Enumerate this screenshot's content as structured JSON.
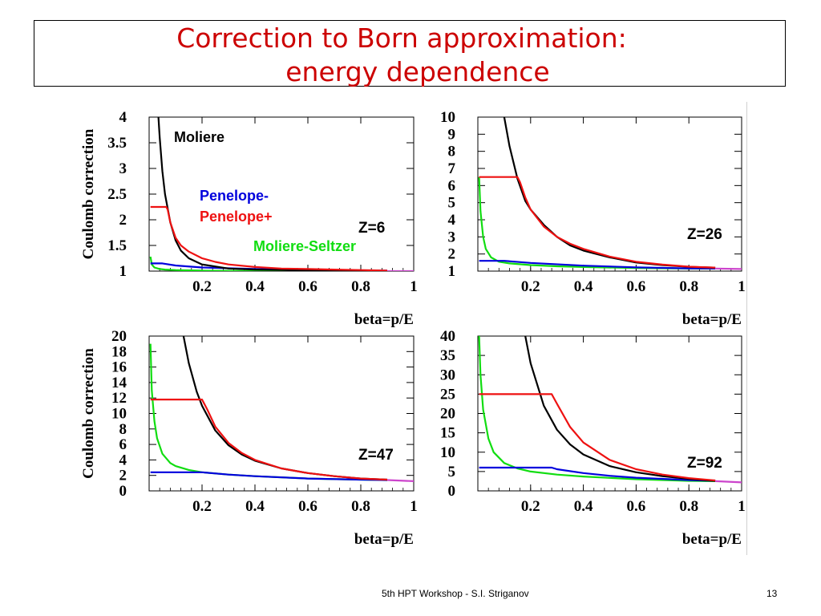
{
  "slide": {
    "title_line1": "Correction to Born approximation:",
    "title_line2": "energy dependence",
    "footer": "5th HPT Workshop  -  S.I. Striganov",
    "page_number": "13"
  },
  "colors": {
    "title": "#cc0000",
    "Moliere": "#000000",
    "Penelope-": "#0000dd",
    "Penelope+": "#ee1111",
    "Moliere-Seltzer": "#11dd11",
    "tail": "#cc44cc"
  },
  "chart_data": [
    {
      "type": "line",
      "z_label": "Z=6",
      "ylabel": "Coulomb correction",
      "xlabel": "beta=p/E",
      "xlim": [
        0,
        1
      ],
      "ylim": [
        1,
        4
      ],
      "xticks": [
        "0.2",
        "0.4",
        "0.6",
        "0.8",
        "1"
      ],
      "xtick_values": [
        0.2,
        0.4,
        0.6,
        0.8,
        1
      ],
      "yticks": [
        "1",
        "1.5",
        "2",
        "2.5",
        "3",
        "3.5",
        "4"
      ],
      "ytick_values": [
        1,
        1.5,
        2,
        2.5,
        3,
        3.5,
        4
      ],
      "legend": [
        "Moliere",
        "Penelope-",
        "Penelope+",
        "Moliere-Seltzer"
      ],
      "series": [
        {
          "name": "Moliere",
          "x": [
            0.035,
            0.04,
            0.05,
            0.06,
            0.08,
            0.1,
            0.12,
            0.15,
            0.2,
            0.3,
            0.4,
            0.5,
            0.6,
            0.7,
            0.8,
            0.9
          ],
          "y": [
            4.0,
            3.6,
            2.95,
            2.5,
            1.95,
            1.6,
            1.4,
            1.25,
            1.13,
            1.05,
            1.03,
            1.02,
            1.01,
            1.01,
            1.0,
            1.0
          ]
        },
        {
          "name": "Penelope-",
          "x": [
            0.005,
            0.05,
            0.1,
            0.2,
            0.4,
            0.6,
            0.8,
            0.9
          ],
          "y": [
            1.15,
            1.15,
            1.11,
            1.07,
            1.04,
            1.02,
            1.01,
            1.01
          ]
        },
        {
          "name": "Penelope+",
          "x": [
            0.005,
            0.065,
            0.07,
            0.08,
            0.1,
            0.12,
            0.15,
            0.2,
            0.25,
            0.3,
            0.4,
            0.5,
            0.6,
            0.7,
            0.8,
            0.9
          ],
          "y": [
            2.25,
            2.25,
            2.2,
            1.95,
            1.65,
            1.5,
            1.38,
            1.25,
            1.18,
            1.13,
            1.08,
            1.05,
            1.04,
            1.03,
            1.02,
            1.01
          ]
        },
        {
          "name": "Moliere-Seltzer",
          "x": [
            0.005,
            0.01,
            0.02,
            0.04,
            0.06,
            0.1,
            0.2,
            0.4,
            0.6,
            0.8,
            0.9
          ],
          "y": [
            1.28,
            1.13,
            1.07,
            1.04,
            1.03,
            1.02,
            1.01,
            1.0,
            1.0,
            1.0,
            1.0
          ]
        },
        {
          "name": "tail",
          "x": [
            0.9,
            1.0
          ],
          "y": [
            1.0,
            1.0
          ]
        }
      ]
    },
    {
      "type": "line",
      "z_label": "Z=26",
      "ylabel": "",
      "xlabel": "beta=p/E",
      "xlim": [
        0,
        1
      ],
      "ylim": [
        1,
        10
      ],
      "xticks": [
        "0.2",
        "0.4",
        "0.6",
        "0.8",
        "1"
      ],
      "xtick_values": [
        0.2,
        0.4,
        0.6,
        0.8,
        1
      ],
      "yticks": [
        "1",
        "2",
        "3",
        "4",
        "5",
        "6",
        "7",
        "8",
        "9",
        "10"
      ],
      "ytick_values": [
        1,
        2,
        3,
        4,
        5,
        6,
        7,
        8,
        9,
        10
      ],
      "series": [
        {
          "name": "Moliere",
          "x": [
            0.1,
            0.12,
            0.15,
            0.18,
            0.2,
            0.25,
            0.3,
            0.35,
            0.4,
            0.5,
            0.6,
            0.7,
            0.8,
            0.9
          ],
          "y": [
            10.0,
            8.3,
            6.4,
            5.1,
            4.6,
            3.7,
            3.0,
            2.5,
            2.2,
            1.8,
            1.5,
            1.35,
            1.25,
            1.2
          ]
        },
        {
          "name": "Penelope-",
          "x": [
            0.005,
            0.1,
            0.2,
            0.4,
            0.6,
            0.8,
            0.9
          ],
          "y": [
            1.6,
            1.6,
            1.48,
            1.32,
            1.22,
            1.16,
            1.15
          ]
        },
        {
          "name": "Penelope+",
          "x": [
            0.005,
            0.15,
            0.16,
            0.18,
            0.2,
            0.25,
            0.3,
            0.35,
            0.4,
            0.5,
            0.6,
            0.7,
            0.8,
            0.9
          ],
          "y": [
            6.5,
            6.5,
            6.2,
            5.3,
            4.6,
            3.6,
            3.0,
            2.6,
            2.3,
            1.85,
            1.55,
            1.38,
            1.26,
            1.2
          ]
        },
        {
          "name": "Moliere-Seltzer",
          "x": [
            0.005,
            0.01,
            0.02,
            0.03,
            0.05,
            0.08,
            0.12,
            0.2,
            0.3,
            0.4,
            0.6,
            0.8,
            0.9
          ],
          "y": [
            6.5,
            4.5,
            3.0,
            2.3,
            1.8,
            1.55,
            1.45,
            1.35,
            1.28,
            1.24,
            1.18,
            1.15,
            1.15
          ]
        },
        {
          "name": "tail",
          "x": [
            0.9,
            1.0
          ],
          "y": [
            1.15,
            1.12
          ]
        }
      ]
    },
    {
      "type": "line",
      "z_label": "Z=47",
      "ylabel": "Coulomb correction",
      "xlabel": "beta=p/E",
      "xlim": [
        0,
        1
      ],
      "ylim": [
        0,
        20
      ],
      "xticks": [
        "0.2",
        "0.4",
        "0.6",
        "0.8",
        "1"
      ],
      "xtick_values": [
        0.2,
        0.4,
        0.6,
        0.8,
        1
      ],
      "yticks": [
        "0",
        "2",
        "4",
        "6",
        "8",
        "10",
        "12",
        "14",
        "16",
        "18",
        "20"
      ],
      "ytick_values": [
        0,
        2,
        4,
        6,
        8,
        10,
        12,
        14,
        16,
        18,
        20
      ],
      "series": [
        {
          "name": "Moliere",
          "x": [
            0.13,
            0.15,
            0.18,
            0.2,
            0.25,
            0.3,
            0.35,
            0.4,
            0.5,
            0.6,
            0.7,
            0.8,
            0.9
          ],
          "y": [
            20.0,
            16.5,
            12.8,
            11.0,
            7.8,
            5.9,
            4.7,
            3.9,
            2.9,
            2.3,
            1.9,
            1.6,
            1.45
          ]
        },
        {
          "name": "Penelope-",
          "x": [
            0.005,
            0.2,
            0.3,
            0.4,
            0.6,
            0.8,
            0.9
          ],
          "y": [
            2.4,
            2.4,
            2.1,
            1.9,
            1.6,
            1.45,
            1.4
          ]
        },
        {
          "name": "Penelope+",
          "x": [
            0.005,
            0.2,
            0.22,
            0.25,
            0.3,
            0.35,
            0.4,
            0.5,
            0.6,
            0.7,
            0.8,
            0.9
          ],
          "y": [
            11.8,
            11.8,
            10.5,
            8.3,
            6.2,
            4.9,
            4.0,
            2.9,
            2.3,
            1.9,
            1.6,
            1.45
          ]
        },
        {
          "name": "Moliere-Seltzer",
          "x": [
            0.005,
            0.01,
            0.02,
            0.03,
            0.05,
            0.08,
            0.1,
            0.15,
            0.2,
            0.3,
            0.4,
            0.6,
            0.8,
            0.9
          ],
          "y": [
            19.0,
            13.0,
            9.0,
            6.8,
            4.8,
            3.6,
            3.2,
            2.7,
            2.4,
            2.1,
            1.9,
            1.6,
            1.45,
            1.4
          ]
        },
        {
          "name": "tail",
          "x": [
            0.9,
            1.0
          ],
          "y": [
            1.4,
            1.25
          ]
        }
      ]
    },
    {
      "type": "line",
      "z_label": "Z=92",
      "ylabel": "",
      "xlabel": "beta=p/E",
      "xlim": [
        0,
        1
      ],
      "ylim": [
        0,
        40
      ],
      "xticks": [
        "0.2",
        "0.4",
        "0.6",
        "0.8",
        "1"
      ],
      "xtick_values": [
        0.2,
        0.4,
        0.6,
        0.8,
        1
      ],
      "yticks": [
        "0",
        "5",
        "10",
        "15",
        "20",
        "25",
        "30",
        "35",
        "40"
      ],
      "ytick_values": [
        0,
        5,
        10,
        15,
        20,
        25,
        30,
        35,
        40
      ],
      "series": [
        {
          "name": "Moliere",
          "x": [
            0.18,
            0.2,
            0.25,
            0.3,
            0.35,
            0.4,
            0.5,
            0.6,
            0.7,
            0.8,
            0.9
          ],
          "y": [
            40.0,
            33.0,
            22.0,
            15.8,
            12.0,
            9.4,
            6.4,
            4.8,
            3.8,
            3.1,
            2.6
          ]
        },
        {
          "name": "Penelope-",
          "x": [
            0.005,
            0.28,
            0.3,
            0.4,
            0.5,
            0.6,
            0.8,
            0.9
          ],
          "y": [
            6.0,
            6.0,
            5.6,
            4.6,
            3.9,
            3.4,
            2.8,
            2.6
          ]
        },
        {
          "name": "Penelope+",
          "x": [
            0.005,
            0.28,
            0.3,
            0.35,
            0.4,
            0.5,
            0.6,
            0.7,
            0.8,
            0.9
          ],
          "y": [
            25.0,
            25.0,
            22.5,
            16.5,
            12.5,
            8.0,
            5.6,
            4.2,
            3.3,
            2.7
          ]
        },
        {
          "name": "Moliere-Seltzer",
          "x": [
            0.005,
            0.01,
            0.02,
            0.04,
            0.06,
            0.1,
            0.15,
            0.2,
            0.3,
            0.4,
            0.6,
            0.8,
            0.9
          ],
          "y": [
            40.0,
            30.0,
            21.0,
            13.5,
            10.0,
            7.2,
            5.8,
            5.0,
            4.2,
            3.7,
            3.0,
            2.6,
            2.5
          ]
        },
        {
          "name": "tail",
          "x": [
            0.9,
            1.0
          ],
          "y": [
            2.5,
            2.2
          ]
        }
      ]
    }
  ]
}
